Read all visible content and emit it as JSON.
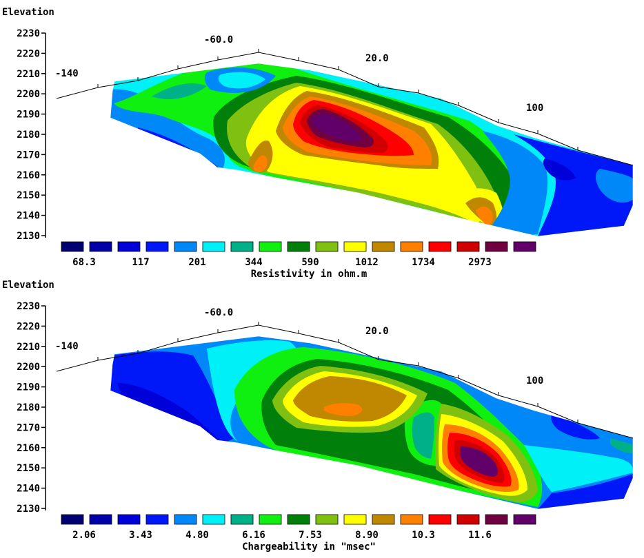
{
  "colors": [
    "#000070",
    "#0000a8",
    "#0000d8",
    "#0018f8",
    "#0088f8",
    "#00f0f8",
    "#00b088",
    "#10f010",
    "#00800a",
    "#80c010",
    "#ffff00",
    "#c08800",
    "#ff8000",
    "#ff0000",
    "#d00000",
    "#700040",
    "#600068"
  ],
  "chart_data": [
    {
      "type": "contour",
      "ylabel": "Elevation",
      "yticks": [
        2230,
        2220,
        2210,
        2200,
        2190,
        2180,
        2170,
        2160,
        2150,
        2140,
        2130
      ],
      "ylim": [
        2130,
        2230
      ],
      "distance_labels": [
        "-140",
        "-60.0",
        "20.0",
        "100"
      ],
      "legend_values": [
        "68.3",
        "117",
        "201",
        "344",
        "590",
        "1012",
        "1734",
        "2973"
      ],
      "legend_title": "Resistivity in ohm.m"
    },
    {
      "type": "contour",
      "ylabel": "Elevation",
      "yticks": [
        2230,
        2220,
        2210,
        2200,
        2190,
        2180,
        2170,
        2160,
        2150,
        2140,
        2130
      ],
      "ylim": [
        2130,
        2230
      ],
      "distance_labels": [
        "-140",
        "-60.0",
        "20.0",
        "100"
      ],
      "legend_values": [
        "2.06",
        "3.43",
        "4.80",
        "6.16",
        "7.53",
        "8.90",
        "10.3",
        "11.6"
      ],
      "legend_title": "Chargeability in \"msec\""
    }
  ]
}
